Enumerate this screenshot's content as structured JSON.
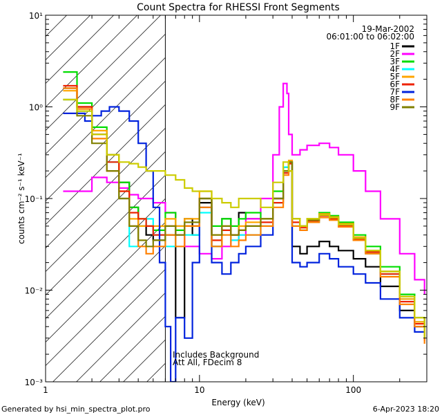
{
  "title": "Count Spectra for RHESSI Front Segments",
  "date_label": "19-Mar-2002",
  "time_label": "06:01:00 to 06:02:00",
  "footer_left": "Generated by hsi_min_spectra_plot.pro",
  "footer_right": "6-Apr-2023 18:20",
  "annotations": [
    "Includes Background",
    "Att All, FDecim 8"
  ],
  "chart_data": {
    "type": "line",
    "title": "Count Spectra for RHESSI Front Segments",
    "xlabel": "Energy (keV)",
    "ylabel": "counts cm⁻² s⁻¹ keV⁻¹",
    "xscale": "log",
    "yscale": "log",
    "xlim": [
      1,
      300
    ],
    "ylim": [
      0.001,
      10
    ],
    "x_ticks": [
      {
        "value": 1,
        "label": "1"
      },
      {
        "value": 10,
        "label": "10"
      },
      {
        "value": 100,
        "label": "100"
      }
    ],
    "y_ticks": [
      {
        "value": 10,
        "label": "10¹"
      },
      {
        "value": 1,
        "label": "10⁰"
      },
      {
        "value": 0.1,
        "label": "10⁻¹"
      },
      {
        "value": 0.01,
        "label": "10⁻²"
      },
      {
        "value": 0.001,
        "label": "10⁻³"
      }
    ],
    "hatched_region_xmax": 6,
    "legend_position": "top-right",
    "series": [
      {
        "name": "1F",
        "color": "#000000",
        "x": [
          1.3,
          1.6,
          2.0,
          2.5,
          3.0,
          3.5,
          4.0,
          4.5,
          5.0,
          6.0,
          7.0,
          8.0,
          9.0,
          10.0,
          12,
          14,
          16,
          18,
          20,
          25,
          30,
          35,
          38,
          40,
          45,
          50,
          60,
          70,
          80,
          100,
          120,
          150,
          200,
          250,
          290
        ],
        "y": [
          1.6,
          1.0,
          0.5,
          0.3,
          0.15,
          0.08,
          0.05,
          0.04,
          0.035,
          0.04,
          0.005,
          0.06,
          0.04,
          0.09,
          0.03,
          0.06,
          0.04,
          0.07,
          0.06,
          0.06,
          0.1,
          0.22,
          0.25,
          0.03,
          0.025,
          0.03,
          0.034,
          0.03,
          0.027,
          0.022,
          0.018,
          0.011,
          0.006,
          0.004,
          0.0035
        ]
      },
      {
        "name": "2F",
        "color": "#ff00ff",
        "x": [
          1.3,
          1.6,
          2.0,
          2.5,
          3.0,
          3.5,
          4.0,
          5.0,
          6.0,
          7.0,
          8.0,
          10.0,
          12,
          14,
          16,
          18,
          20,
          25,
          30,
          33,
          35,
          37,
          38,
          40,
          45,
          50,
          60,
          70,
          80,
          100,
          120,
          150,
          200,
          250,
          290
        ],
        "y": [
          0.12,
          0.12,
          0.17,
          0.15,
          0.13,
          0.11,
          0.1,
          0.09,
          0.07,
          0.05,
          0.03,
          0.025,
          0.022,
          0.03,
          0.035,
          0.04,
          0.06,
          0.1,
          0.3,
          1.0,
          1.8,
          1.4,
          0.5,
          0.3,
          0.34,
          0.38,
          0.4,
          0.36,
          0.3,
          0.2,
          0.12,
          0.06,
          0.025,
          0.013,
          0.009
        ]
      },
      {
        "name": "3F",
        "color": "#00dd00",
        "x": [
          1.3,
          1.6,
          2.0,
          2.5,
          3.0,
          3.5,
          4.0,
          4.5,
          5.0,
          6.0,
          7.0,
          8.0,
          10.0,
          12,
          14,
          16,
          18,
          20,
          25,
          30,
          35,
          38,
          40,
          45,
          50,
          60,
          70,
          80,
          100,
          120,
          150,
          200,
          250,
          290
        ],
        "y": [
          2.4,
          1.1,
          0.6,
          0.3,
          0.15,
          0.08,
          0.06,
          0.05,
          0.045,
          0.07,
          0.045,
          0.05,
          0.1,
          0.05,
          0.06,
          0.05,
          0.06,
          0.07,
          0.06,
          0.12,
          0.2,
          0.25,
          0.06,
          0.05,
          0.06,
          0.07,
          0.065,
          0.055,
          0.04,
          0.03,
          0.018,
          0.009,
          0.005,
          0.003
        ]
      },
      {
        "name": "4F",
        "color": "#00ffff",
        "x": [
          1.3,
          1.6,
          2.0,
          2.5,
          3.0,
          3.5,
          4.0,
          4.5,
          5.0,
          6.0,
          7.0,
          8.0,
          10.0,
          12,
          14,
          16,
          18,
          20,
          25,
          30,
          35,
          38,
          40,
          45,
          50,
          60,
          70,
          80,
          100,
          120,
          150,
          200,
          250,
          290
        ],
        "y": [
          1.2,
          0.9,
          0.5,
          0.25,
          0.1,
          0.03,
          0.05,
          0.06,
          0.04,
          0.03,
          0.05,
          0.04,
          0.07,
          0.03,
          0.045,
          0.035,
          0.04,
          0.04,
          0.05,
          0.09,
          0.22,
          0.25,
          0.05,
          0.045,
          0.055,
          0.065,
          0.06,
          0.05,
          0.035,
          0.025,
          0.015,
          0.008,
          0.0045,
          0.003
        ]
      },
      {
        "name": "5F",
        "color": "#ffa500",
        "x": [
          1.3,
          1.6,
          2.0,
          2.5,
          3.0,
          3.5,
          4.0,
          4.5,
          5.0,
          6.0,
          7.0,
          8.0,
          10.0,
          12,
          14,
          16,
          18,
          20,
          25,
          30,
          35,
          38,
          40,
          45,
          50,
          60,
          70,
          80,
          100,
          120,
          150,
          200,
          250,
          290
        ],
        "y": [
          1.5,
          1.0,
          0.55,
          0.3,
          0.12,
          0.06,
          0.05,
          0.05,
          0.05,
          0.06,
          0.05,
          0.06,
          0.12,
          0.04,
          0.05,
          0.04,
          0.05,
          0.055,
          0.06,
          0.1,
          0.2,
          0.26,
          0.06,
          0.05,
          0.06,
          0.068,
          0.063,
          0.053,
          0.038,
          0.027,
          0.016,
          0.008,
          0.0045,
          0.003
        ]
      },
      {
        "name": "6F",
        "color": "#ee2200",
        "x": [
          1.3,
          1.6,
          2.0,
          2.5,
          3.0,
          3.5,
          4.0,
          4.5,
          5.0,
          6.0,
          7.0,
          8.0,
          10.0,
          12,
          14,
          16,
          18,
          20,
          25,
          30,
          35,
          38,
          40,
          45,
          50,
          60,
          70,
          80,
          100,
          120,
          150,
          200,
          250,
          290
        ],
        "y": [
          1.7,
          1.0,
          0.5,
          0.25,
          0.12,
          0.07,
          0.06,
          0.05,
          0.04,
          0.05,
          0.04,
          0.05,
          0.1,
          0.035,
          0.045,
          0.04,
          0.045,
          0.05,
          0.055,
          0.09,
          0.19,
          0.24,
          0.055,
          0.048,
          0.057,
          0.065,
          0.06,
          0.05,
          0.036,
          0.026,
          0.015,
          0.0075,
          0.0043,
          0.0028
        ]
      },
      {
        "name": "7F",
        "color": "#0022dd",
        "x": [
          1.3,
          1.5,
          1.8,
          2.0,
          2.3,
          2.6,
          3.0,
          3.5,
          4.0,
          4.5,
          5.0,
          5.5,
          6.0,
          6.5,
          7.0,
          8.0,
          9.0,
          10.0,
          12,
          14,
          16,
          18,
          20,
          25,
          30,
          35,
          38,
          40,
          45,
          50,
          60,
          70,
          80,
          100,
          120,
          150,
          200,
          250,
          290
        ],
        "y": [
          0.85,
          0.85,
          0.7,
          0.8,
          0.9,
          1.0,
          0.9,
          0.7,
          0.4,
          0.2,
          0.08,
          0.02,
          0.004,
          0.001,
          0.005,
          0.003,
          0.02,
          0.08,
          0.02,
          0.015,
          0.02,
          0.025,
          0.03,
          0.04,
          0.1,
          0.2,
          0.2,
          0.02,
          0.018,
          0.02,
          0.025,
          0.022,
          0.018,
          0.015,
          0.012,
          0.008,
          0.005,
          0.0035,
          0.003
        ]
      },
      {
        "name": "8F",
        "color": "#ff8000",
        "x": [
          1.3,
          1.6,
          2.0,
          2.5,
          3.0,
          3.5,
          4.0,
          4.5,
          5.0,
          6.0,
          7.0,
          8.0,
          10.0,
          12,
          14,
          16,
          18,
          20,
          25,
          30,
          35,
          38,
          40,
          45,
          50,
          60,
          70,
          80,
          100,
          120,
          150,
          200,
          250,
          290
        ],
        "y": [
          1.6,
          0.95,
          0.45,
          0.2,
          0.1,
          0.05,
          0.03,
          0.025,
          0.03,
          0.04,
          0.03,
          0.05,
          0.08,
          0.03,
          0.04,
          0.03,
          0.035,
          0.04,
          0.05,
          0.08,
          0.18,
          0.2,
          0.05,
          0.045,
          0.055,
          0.062,
          0.058,
          0.049,
          0.035,
          0.025,
          0.014,
          0.007,
          0.004,
          0.0026
        ]
      },
      {
        "name": "9F",
        "color": "#808000",
        "x": [
          1.3,
          1.6,
          2.0,
          2.5,
          3.0,
          3.5,
          4.0,
          4.5,
          5.0,
          6.0,
          7.0,
          8.0,
          10.0,
          12,
          14,
          16,
          18,
          20,
          25,
          30,
          35,
          38,
          40,
          45,
          50,
          60,
          70,
          80,
          100,
          120,
          150,
          200,
          250,
          290
        ],
        "y": [
          1.2,
          0.8,
          0.4,
          0.2,
          0.1,
          0.05,
          0.035,
          0.03,
          0.035,
          0.05,
          0.04,
          0.055,
          0.1,
          0.04,
          0.05,
          0.04,
          0.045,
          0.05,
          0.06,
          0.1,
          0.2,
          0.25,
          0.06,
          0.05,
          0.058,
          0.066,
          0.062,
          0.052,
          0.037,
          0.027,
          0.016,
          0.0085,
          0.005,
          0.003
        ]
      },
      {
        "name": "",
        "color": "#cccc00",
        "x": [
          1.3,
          1.6,
          2.0,
          2.5,
          3.0,
          3.5,
          4.0,
          4.5,
          5.0,
          6.0,
          7.0,
          8.0,
          9.0,
          10.0,
          12,
          14,
          16,
          18,
          20,
          25,
          30,
          35,
          38,
          40,
          45,
          50,
          60,
          70,
          80,
          100,
          120,
          150,
          200,
          250,
          290
        ],
        "y": [
          1.2,
          0.9,
          0.5,
          0.3,
          0.25,
          0.24,
          0.22,
          0.2,
          0.2,
          0.18,
          0.16,
          0.13,
          0.12,
          0.12,
          0.1,
          0.09,
          0.08,
          0.1,
          0.1,
          0.08,
          0.15,
          0.25,
          0.2,
          0.06,
          0.05,
          0.06,
          0.066,
          0.062,
          0.052,
          0.037,
          0.027,
          0.016,
          0.0085,
          0.005,
          0.003
        ]
      }
    ]
  }
}
